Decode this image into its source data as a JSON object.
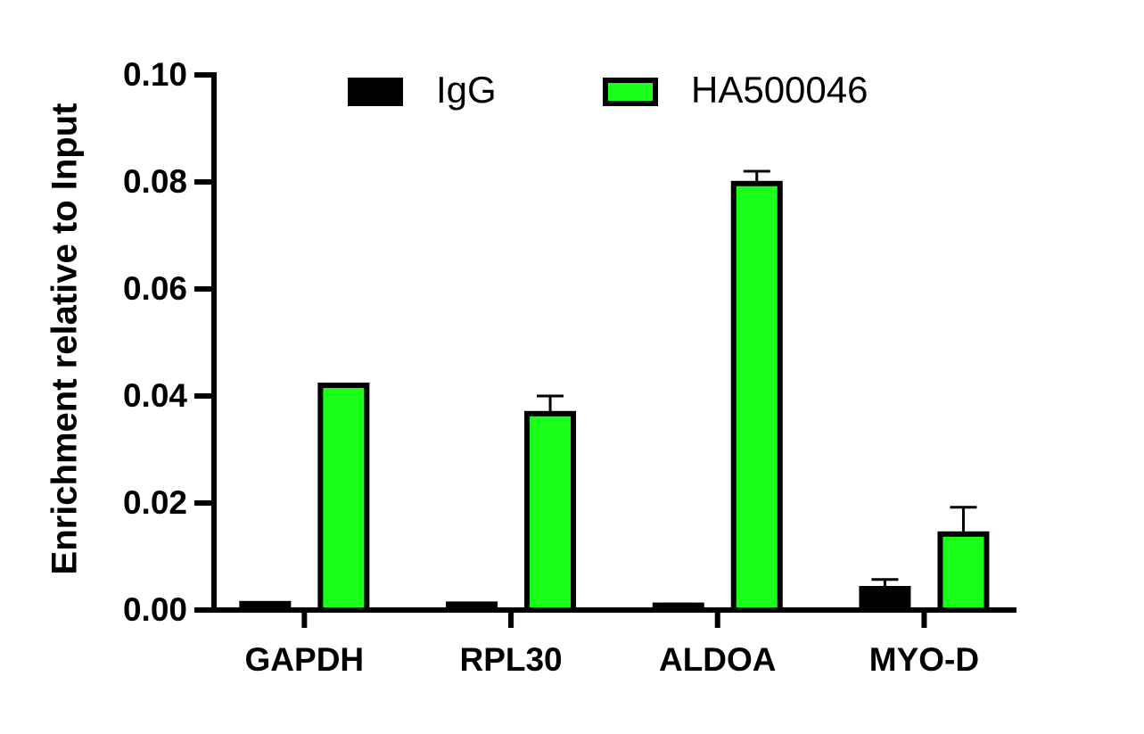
{
  "chart_data": {
    "type": "bar",
    "y_label": "Enrichment relative to Input",
    "categories": [
      "GAPDH",
      "RPL30",
      "ALDOA",
      "MYO-D"
    ],
    "series": [
      {
        "name": "IgG",
        "color": "#000000",
        "values": [
          0.0012,
          0.0011,
          0.0009,
          0.004
        ],
        "errors": [
          0.0002,
          0.0002,
          0.0002,
          0.0017
        ]
      },
      {
        "name": "HA500046",
        "color": "#1aff1a",
        "values": [
          0.042,
          0.0367,
          0.0797,
          0.0142
        ],
        "errors": [
          0.0002,
          0.0033,
          0.0023,
          0.005
        ]
      }
    ],
    "ylim": [
      0,
      0.1
    ],
    "yticks": [
      {
        "value": 0,
        "label": "0.00"
      },
      0.02,
      0.04,
      0.06,
      0.08,
      {
        "value": 0.1,
        "label": "0.10"
      }
    ],
    "legend": "top",
    "grid": false
  }
}
